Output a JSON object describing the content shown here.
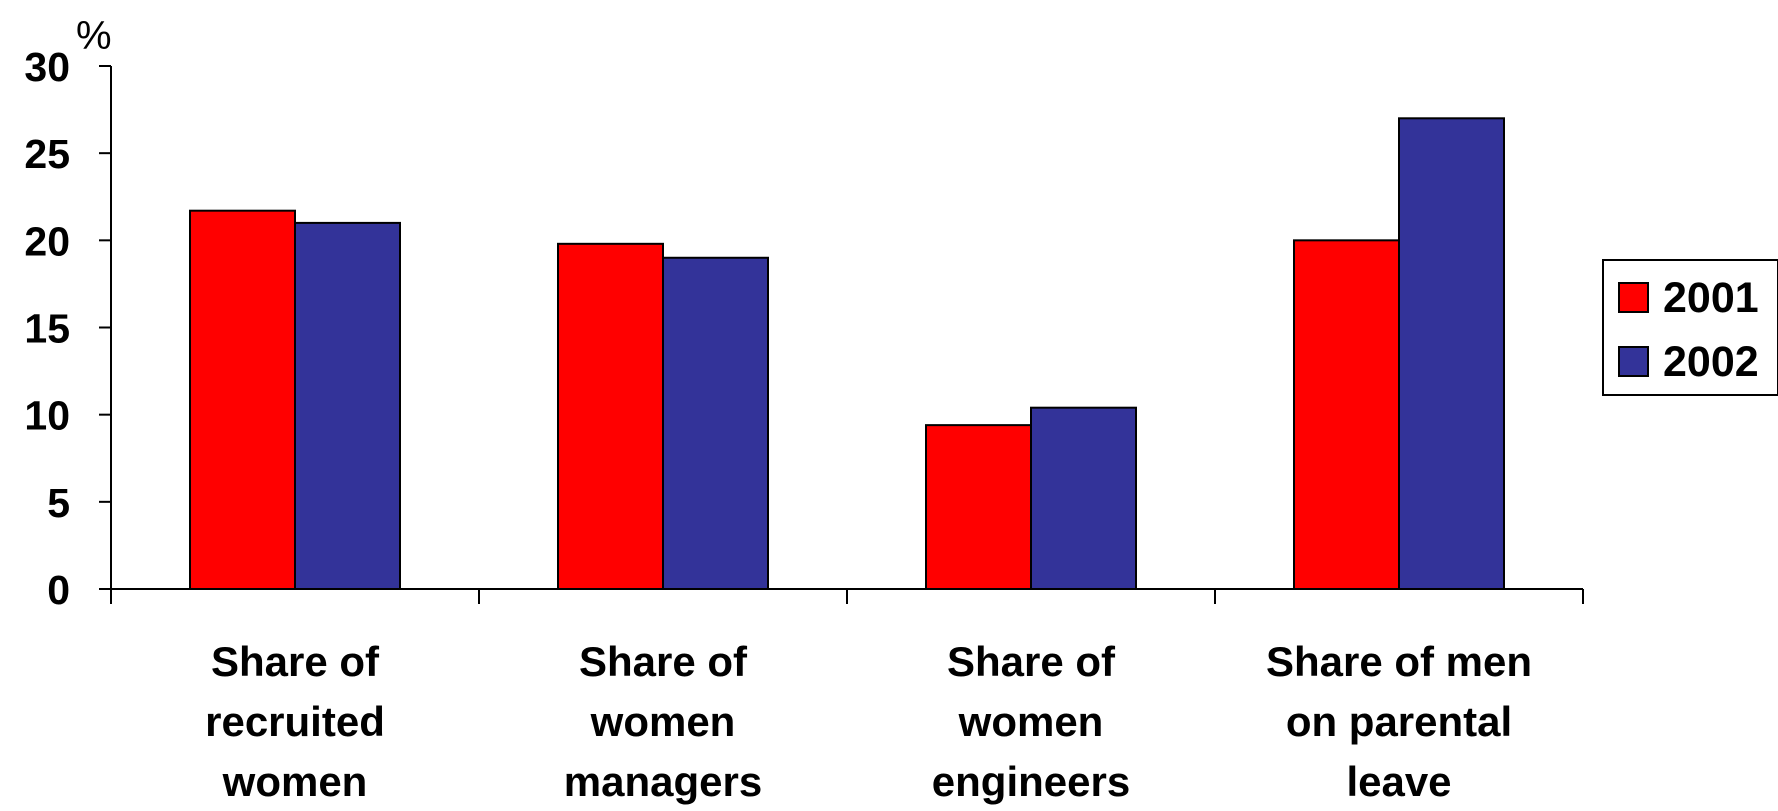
{
  "chart_data": {
    "type": "bar",
    "title": "",
    "xlabel": "",
    "ylabel": "%",
    "ylim": [
      0,
      30
    ],
    "yticks": [
      0,
      5,
      10,
      15,
      20,
      25,
      30
    ],
    "grid": false,
    "legend_position": "right",
    "categories": [
      [
        "Share of",
        "recruited",
        "women"
      ],
      [
        "Share of",
        "women",
        "managers"
      ],
      [
        "Share of",
        "women",
        "engineers"
      ],
      [
        "Share of men",
        "on parental",
        "leave"
      ]
    ],
    "series": [
      {
        "name": "2001",
        "color": "#ff0000",
        "values": [
          21.7,
          19.8,
          9.4,
          20.0
        ]
      },
      {
        "name": "2002",
        "color": "#333399",
        "values": [
          21.0,
          19.0,
          10.4,
          27.0
        ]
      }
    ]
  }
}
